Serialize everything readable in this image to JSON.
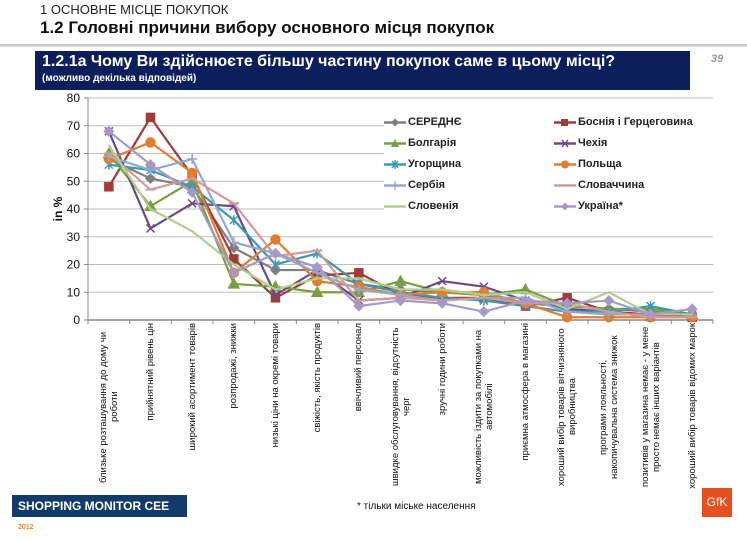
{
  "header": {
    "section": "1 ОСНОВНЕ МІСЦЕ ПОКУПОК",
    "title": "1.2 Головні причини вибору основного місця покупок"
  },
  "question": {
    "title": "1.2.1а Чому Ви здійснюєте більшу частину покупок саме в цьому місці?",
    "note": "(можливо декілька відповідей)",
    "page": "39"
  },
  "footer": {
    "brand": "SHOPPING MONITOR CEE",
    "year": "2012",
    "footnote": "* тільки міське населення",
    "logo": "GfK"
  },
  "chart_data": {
    "type": "line",
    "ylabel": "in %",
    "ylim": [
      0,
      80
    ],
    "yticks": [
      "0",
      "10",
      "20",
      "30",
      "40",
      "50",
      "60",
      "70",
      "80"
    ],
    "grid": true,
    "legend_position": "top-right",
    "categories": [
      "близьке розташування до дому чи роботи",
      "прийнятний рівень цін",
      "широкий асортимент товарів",
      "розпродажі, знижки",
      "низькі ціни на окремі товари",
      "свіжість, якість продуктів",
      "ввічливий персонал",
      "швидке обслуговування, відсутність черг",
      "зручні години роботи",
      "можливість їздити за покупками на автомобілі",
      "приємна атмосфера в магазині",
      "хороший вибір товарів вітчизняного виробництва",
      "програми лояльності, накопичувальна система знижок",
      "позитивів у магазина немає - у мене просто немає інших варіантів",
      "хороший вибір товарів відомих марок"
    ],
    "series": [
      {
        "name": "СЕРЕДНЄ",
        "color": "#7f7f7f",
        "marker": "diamond",
        "values": [
          58,
          51,
          48,
          26,
          18,
          18,
          13,
          11,
          10,
          9,
          6,
          5,
          4,
          3,
          2
        ]
      },
      {
        "name": "Боснія і Герцеговина",
        "color": "#a33a3a",
        "marker": "square",
        "values": [
          48,
          73,
          52,
          22,
          8,
          16,
          17,
          9,
          8,
          8,
          5,
          8,
          3,
          2,
          1
        ]
      },
      {
        "name": "Болгарія",
        "color": "#77a040",
        "marker": "triangle",
        "values": [
          60,
          41,
          50,
          13,
          12,
          10,
          10,
          14,
          10,
          9,
          11,
          5,
          4,
          4,
          2
        ]
      },
      {
        "name": "Чехія",
        "color": "#6a4a8c",
        "marker": "x",
        "values": [
          68,
          33,
          42,
          41,
          9,
          18,
          7,
          8,
          14,
          12,
          7,
          4,
          3,
          1,
          1
        ]
      },
      {
        "name": "Угорщина",
        "color": "#3a9ab0",
        "marker": "star",
        "values": [
          56,
          54,
          48,
          36,
          20,
          24,
          13,
          10,
          8,
          7,
          5,
          3,
          3,
          5,
          2
        ]
      },
      {
        "name": "Польща",
        "color": "#e07f30",
        "marker": "circle",
        "values": [
          58,
          64,
          53,
          17,
          29,
          14,
          12,
          9,
          10,
          10,
          6,
          1,
          1,
          1,
          1
        ]
      },
      {
        "name": "Сербія",
        "color": "#90a8d0",
        "marker": "plus",
        "values": [
          59,
          54,
          58,
          28,
          24,
          17,
          11,
          9,
          7,
          8,
          8,
          3,
          2,
          2,
          2
        ]
      },
      {
        "name": "Словаччина",
        "color": "#d49a9a",
        "marker": "dash",
        "values": [
          60,
          47,
          51,
          42,
          23,
          25,
          7,
          8,
          7,
          8,
          6,
          6,
          3,
          1,
          1
        ]
      },
      {
        "name": "Словенія",
        "color": "#b0d090",
        "marker": "none",
        "values": [
          63,
          40,
          32,
          20,
          11,
          15,
          15,
          11,
          11,
          9,
          10,
          4,
          10,
          2,
          2
        ]
      },
      {
        "name": "Україна*",
        "color": "#a898c8",
        "marker": "diamond",
        "values": [
          68,
          56,
          46,
          17,
          24,
          19,
          5,
          7,
          6,
          3,
          7,
          6,
          7,
          2,
          4
        ]
      }
    ]
  }
}
